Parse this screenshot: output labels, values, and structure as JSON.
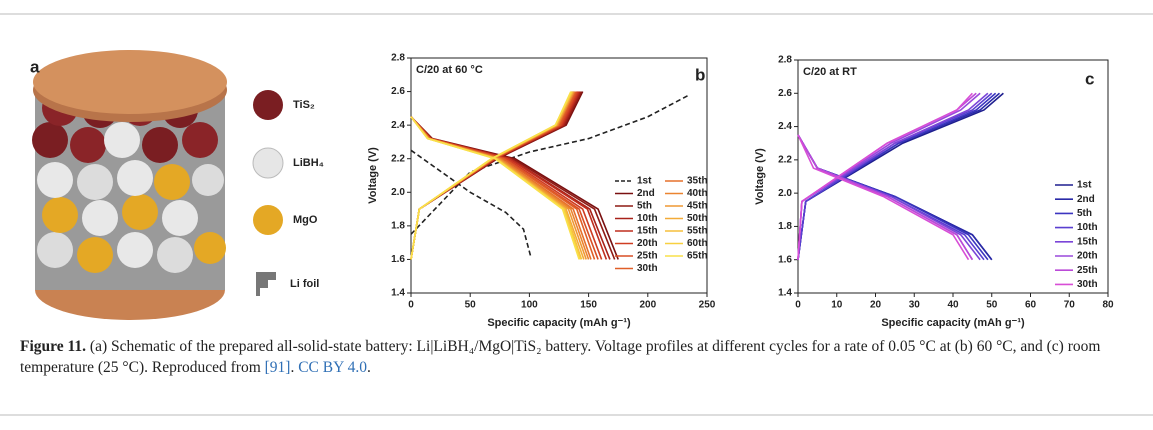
{
  "panel_a": {
    "label": "a",
    "legend": [
      "TiS₂",
      "LiBH₄",
      "MgO",
      "Li foil"
    ]
  },
  "chart_data": [
    {
      "type": "line",
      "annotation": "C/20 at 60 °C",
      "panel_label": "b",
      "x_label": "Specific capacity (mAh g⁻¹)",
      "y_label": "Voltage (V)",
      "xlim": [
        0,
        250
      ],
      "xticks": [
        0,
        50,
        100,
        150,
        200,
        250
      ],
      "ylim": [
        1.4,
        2.8
      ],
      "yticks": [
        1.4,
        1.6,
        1.8,
        {
          "value": 2,
          "label": "2.0"
        },
        2.2,
        2.4,
        2.6,
        2.8
      ],
      "series": [
        {
          "name": "1st",
          "color": "#222222",
          "style": "dashed",
          "x": [
            0,
            20,
            50,
            80,
            95,
            101,
            null,
            0,
            50,
            100,
            150,
            200,
            235
          ],
          "values": [
            2.25,
            2.15,
            2.0,
            1.88,
            1.78,
            1.62,
            null,
            1.75,
            2.12,
            2.24,
            2.32,
            2.45,
            2.58
          ]
        },
        {
          "name": "2nd",
          "color": "#7a1010",
          "x": [
            0,
            18,
            88,
            158,
            175,
            null,
            0,
            7,
            73,
            131,
            145
          ],
          "values": [
            2.45,
            2.32,
            2.2,
            1.9,
            1.6,
            null,
            1.6,
            1.9,
            2.2,
            2.4,
            2.6
          ]
        },
        {
          "name": "5th",
          "color": "#8e1a14",
          "x": [
            0,
            17,
            86,
            155,
            172,
            null,
            0,
            7,
            72,
            130,
            144
          ],
          "values": [
            2.45,
            2.32,
            2.2,
            1.9,
            1.6,
            null,
            1.6,
            1.9,
            2.2,
            2.4,
            2.6
          ]
        },
        {
          "name": "10th",
          "color": "#a8221a",
          "x": [
            0,
            17,
            84,
            151,
            168,
            null,
            0,
            7,
            72,
            129,
            143
          ],
          "values": [
            2.45,
            2.32,
            2.2,
            1.9,
            1.6,
            null,
            1.6,
            1.9,
            2.2,
            2.4,
            2.6
          ]
        },
        {
          "name": "15th",
          "color": "#bf2e1e",
          "x": [
            0,
            17,
            83,
            149,
            165,
            null,
            0,
            7,
            71,
            128,
            142
          ],
          "values": [
            2.45,
            2.32,
            2.2,
            1.9,
            1.6,
            null,
            1.6,
            1.9,
            2.2,
            2.4,
            2.6
          ]
        },
        {
          "name": "20th",
          "color": "#cf3d22",
          "x": [
            0,
            16,
            81,
            145,
            161,
            null,
            0,
            7,
            71,
            127,
            141
          ],
          "values": [
            2.45,
            2.32,
            2.2,
            1.9,
            1.6,
            null,
            1.6,
            1.9,
            2.2,
            2.4,
            2.6
          ]
        },
        {
          "name": "25th",
          "color": "#d94f25",
          "x": [
            0,
            16,
            79,
            142,
            158,
            null,
            0,
            7,
            70,
            126,
            140
          ],
          "values": [
            2.45,
            2.32,
            2.2,
            1.9,
            1.6,
            null,
            1.6,
            1.9,
            2.2,
            2.4,
            2.6
          ]
        },
        {
          "name": "30th",
          "color": "#e05f28",
          "x": [
            0,
            16,
            78,
            140,
            155,
            null,
            0,
            7,
            70,
            125,
            139
          ],
          "values": [
            2.45,
            2.32,
            2.2,
            1.9,
            1.6,
            null,
            1.6,
            1.9,
            2.2,
            2.4,
            2.6
          ]
        },
        {
          "name": "35th",
          "color": "#e6712c",
          "x": [
            0,
            15,
            76,
            137,
            152,
            null,
            0,
            7,
            69,
            124,
            138
          ],
          "values": [
            2.45,
            2.32,
            2.2,
            1.9,
            1.6,
            null,
            1.6,
            1.9,
            2.2,
            2.4,
            2.6
          ]
        },
        {
          "name": "40th",
          "color": "#eb8430",
          "x": [
            0,
            15,
            75,
            135,
            150,
            null,
            0,
            7,
            69,
            124,
            138
          ],
          "values": [
            2.45,
            2.32,
            2.2,
            1.9,
            1.6,
            null,
            1.6,
            1.9,
            2.2,
            2.4,
            2.6
          ]
        },
        {
          "name": "45th",
          "color": "#ef9834",
          "x": [
            0,
            15,
            74,
            133,
            148,
            null,
            0,
            7,
            69,
            123,
            137
          ],
          "values": [
            2.45,
            2.32,
            2.2,
            1.9,
            1.6,
            null,
            1.6,
            1.9,
            2.2,
            2.4,
            2.6
          ]
        },
        {
          "name": "50th",
          "color": "#f3ab38",
          "x": [
            0,
            15,
            73,
            131,
            146,
            null,
            0,
            7,
            69,
            123,
            137
          ],
          "values": [
            2.45,
            2.32,
            2.2,
            1.9,
            1.6,
            null,
            1.6,
            1.9,
            2.2,
            2.4,
            2.6
          ]
        },
        {
          "name": "55th",
          "color": "#f6bf3c",
          "x": [
            0,
            14,
            72,
            130,
            144,
            null,
            0,
            7,
            68,
            122,
            136
          ],
          "values": [
            2.45,
            2.32,
            2.2,
            1.9,
            1.6,
            null,
            1.6,
            1.9,
            2.2,
            2.4,
            2.6
          ]
        },
        {
          "name": "60th",
          "color": "#f8d040",
          "x": [
            0,
            14,
            72,
            129,
            143,
            null,
            0,
            7,
            68,
            122,
            136
          ],
          "values": [
            2.45,
            2.32,
            2.2,
            1.9,
            1.6,
            null,
            1.6,
            1.9,
            2.2,
            2.4,
            2.6
          ]
        },
        {
          "name": "65th",
          "color": "#f9e04a",
          "x": [
            0,
            14,
            71,
            128,
            142,
            null,
            0,
            7,
            68,
            122,
            135
          ],
          "values": [
            2.45,
            2.32,
            2.2,
            1.9,
            1.6,
            null,
            1.6,
            1.9,
            2.2,
            2.4,
            2.6
          ]
        }
      ]
    },
    {
      "type": "line",
      "annotation": "C/20 at RT",
      "panel_label": "c",
      "x_label": "Specific capacity (mAh g⁻¹)",
      "y_label": "Voltage (V)",
      "xlim": [
        0,
        80
      ],
      "xticks": [
        0,
        10,
        20,
        30,
        40,
        50,
        60,
        70,
        80
      ],
      "ylim": [
        1.4,
        2.8
      ],
      "yticks": [
        1.4,
        1.6,
        1.8,
        {
          "value": 2,
          "label": "2.0"
        },
        2.2,
        2.4,
        2.6,
        2.8
      ],
      "series": [
        {
          "name": "1st",
          "color": "#1f1f8f",
          "x": [
            0,
            5,
            25,
            45,
            50,
            null,
            0,
            2,
            27,
            48,
            53
          ],
          "values": [
            2.35,
            2.15,
            1.98,
            1.75,
            1.6,
            null,
            1.6,
            1.95,
            2.3,
            2.5,
            2.6
          ]
        },
        {
          "name": "2nd",
          "color": "#2a2aa8",
          "x": [
            0,
            5,
            25,
            45,
            50,
            null,
            0,
            2,
            26,
            47,
            52
          ],
          "values": [
            2.35,
            2.15,
            1.98,
            1.75,
            1.6,
            null,
            1.6,
            1.95,
            2.3,
            2.5,
            2.6
          ]
        },
        {
          "name": "5th",
          "color": "#3c35c0",
          "x": [
            0,
            5,
            25,
            44,
            49,
            null,
            0,
            2,
            26,
            46,
            51
          ],
          "values": [
            2.35,
            2.15,
            1.98,
            1.75,
            1.6,
            null,
            1.6,
            1.95,
            2.3,
            2.5,
            2.6
          ]
        },
        {
          "name": "10th",
          "color": "#5a3fd0",
          "x": [
            0,
            5,
            24,
            43,
            48,
            null,
            0,
            2,
            25,
            45,
            50
          ],
          "values": [
            2.35,
            2.15,
            1.98,
            1.75,
            1.6,
            null,
            1.6,
            1.95,
            2.3,
            2.5,
            2.6
          ]
        },
        {
          "name": "15th",
          "color": "#7b45d8",
          "x": [
            0,
            5,
            24,
            42,
            47,
            null,
            0,
            1,
            25,
            44,
            49
          ],
          "values": [
            2.35,
            2.15,
            1.98,
            1.75,
            1.6,
            null,
            1.6,
            1.95,
            2.3,
            2.5,
            2.6
          ]
        },
        {
          "name": "20th",
          "color": "#9a48dc",
          "x": [
            0,
            5,
            23,
            41,
            45,
            null,
            0,
            1,
            24,
            42,
            47
          ],
          "values": [
            2.35,
            2.15,
            1.98,
            1.75,
            1.6,
            null,
            1.6,
            1.95,
            2.3,
            2.5,
            2.6
          ]
        },
        {
          "name": "25th",
          "color": "#bb4ad8",
          "x": [
            0,
            5,
            23,
            41,
            45,
            null,
            0,
            1,
            23,
            41,
            46
          ],
          "values": [
            2.35,
            2.15,
            1.98,
            1.75,
            1.6,
            null,
            1.6,
            1.95,
            2.3,
            2.5,
            2.6
          ]
        },
        {
          "name": "30th",
          "color": "#d84ed6",
          "x": [
            0,
            4,
            22,
            40,
            44,
            null,
            0,
            1,
            23,
            41,
            45
          ],
          "values": [
            2.35,
            2.15,
            1.98,
            1.75,
            1.6,
            null,
            1.6,
            1.95,
            2.3,
            2.5,
            2.6
          ]
        }
      ]
    }
  ],
  "caption": {
    "label": "Figure 11.",
    "text": " (a) Schematic of the prepared all-solid-state battery: Li|LiBH₄/MgO|TiS₂ battery. Voltage profiles at different cycles for a rate of 0.05 °C at (b) 60 °C, and (c) room temperature (25 °C). Reproduced from ",
    "reference": "[91]",
    "separator": ". ",
    "license": "CC BY 4.0",
    "end": "."
  }
}
